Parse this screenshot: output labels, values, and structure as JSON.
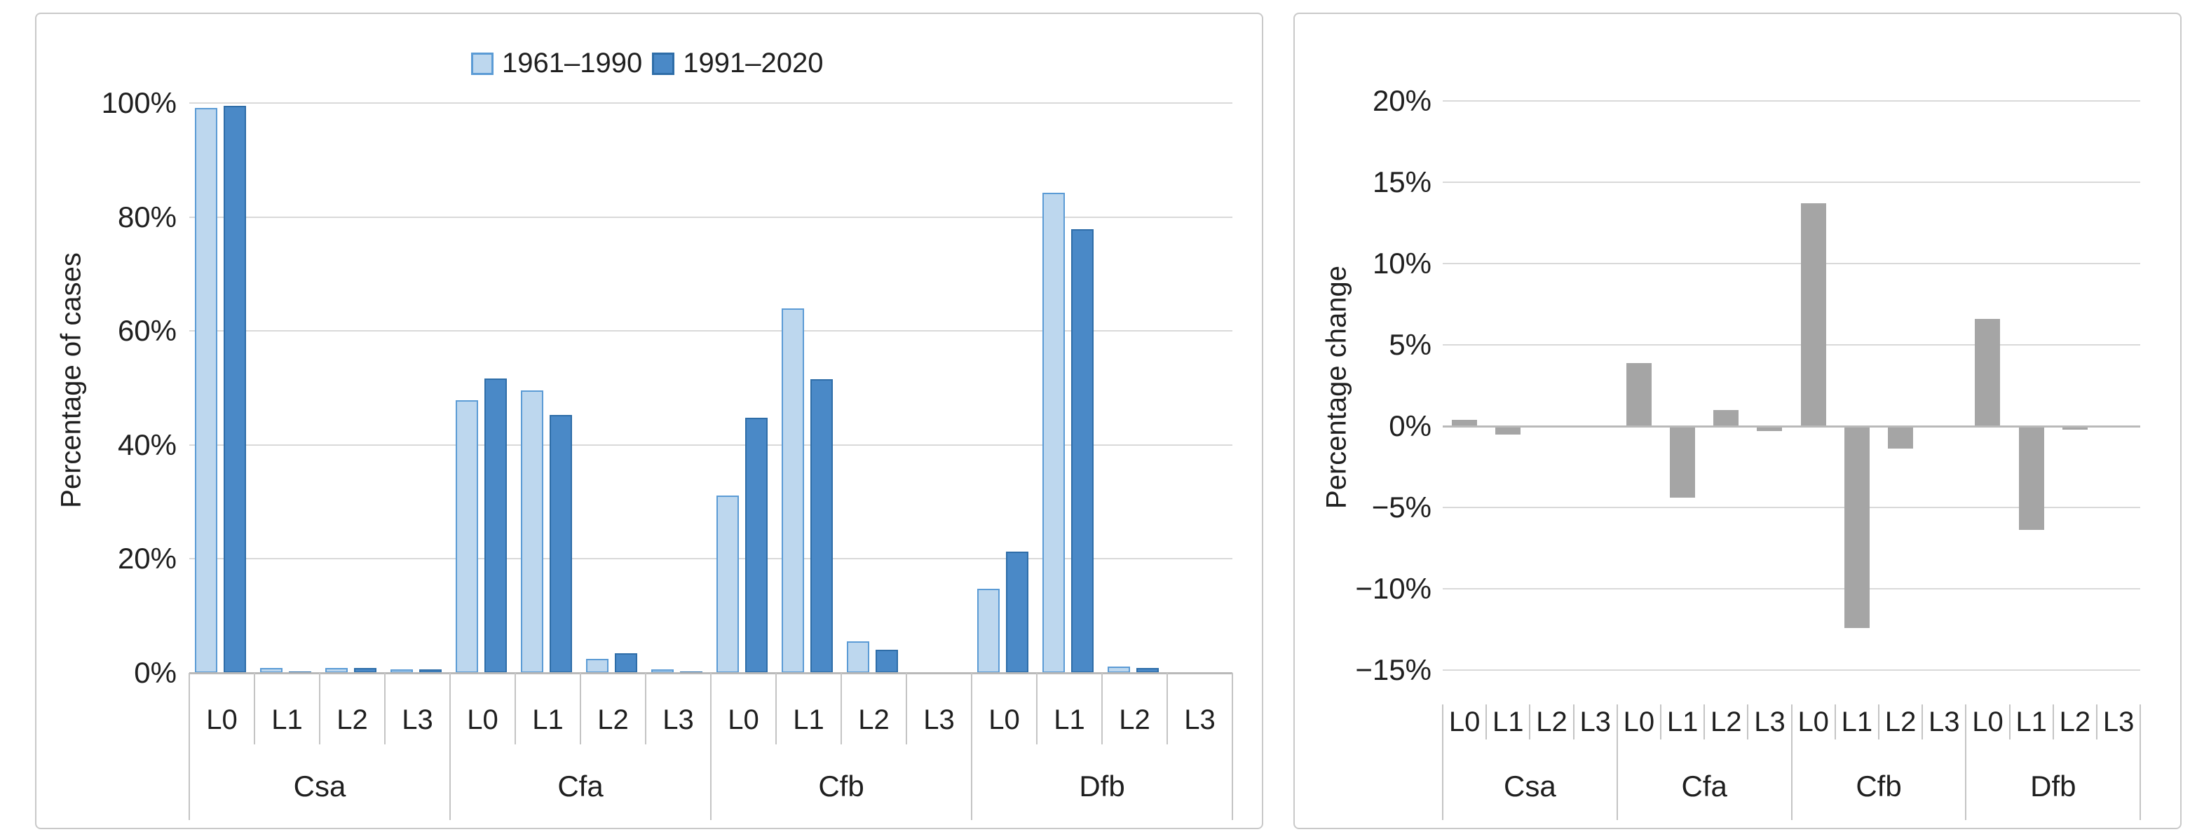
{
  "figure": {
    "description_left": "Grouped bar chart of percentage of cases per lightning category for two climate periods",
    "description_right": "Bar chart of percentage change between the two periods"
  },
  "colors": {
    "series_1961_fill": "#BDD7EE",
    "series_1961_border": "#5B9BD5",
    "series_1991_fill": "#4A89C7",
    "series_1991_border": "#2E6DA8",
    "change_bar_fill": "#A5A5A5",
    "gridline": "#D9D9D9",
    "axis_line": "#B9B9B9",
    "separator": "#C4C4C4",
    "text": "#1F1F1F"
  },
  "chart_data": [
    {
      "type": "bar",
      "title": "",
      "ylabel": "Percentage of cases",
      "xlabel": "",
      "legend_position": "top-center",
      "grid": true,
      "ylim": [
        0,
        100
      ],
      "ytick_labels": [
        "100%",
        "80%",
        "60%",
        "40%",
        "20%",
        "0%"
      ],
      "ytick_values": [
        100,
        80,
        60,
        40,
        20,
        0
      ],
      "groups": [
        "Csa",
        "Cfa",
        "Cfb",
        "Dfb"
      ],
      "subcategories": [
        "L0",
        "L1",
        "L2",
        "L3"
      ],
      "legend": [
        {
          "label": "1961–1990",
          "fill": "#BDD7EE",
          "border": "#5B9BD5"
        },
        {
          "label": "1991–2020",
          "fill": "#4A89C7",
          "border": "#2E6DA8"
        }
      ],
      "series": [
        {
          "name": "1961–1990",
          "values": [
            99.1,
            0.8,
            0.8,
            0.6,
            47.8,
            49.6,
            2.5,
            0.6,
            31.1,
            63.9,
            5.5,
            0.0,
            14.7,
            84.3,
            1.1,
            0.0
          ]
        },
        {
          "name": "1991–2020",
          "values": [
            99.5,
            0.3,
            0.8,
            0.6,
            51.7,
            45.3,
            3.5,
            0.3,
            44.8,
            51.5,
            4.1,
            0.0,
            21.3,
            77.9,
            0.9,
            0.0
          ]
        }
      ]
    },
    {
      "type": "bar",
      "title": "",
      "ylabel": "Percentage change",
      "xlabel": "",
      "grid": true,
      "ylim": [
        -15,
        20
      ],
      "ytick_labels": [
        "20%",
        "15%",
        "10%",
        "5%",
        "0%",
        "−5%",
        "−10%",
        "−15%"
      ],
      "ytick_values": [
        20,
        15,
        10,
        5,
        0,
        -5,
        -10,
        -15
      ],
      "groups": [
        "Csa",
        "Cfa",
        "Cfb",
        "Dfb"
      ],
      "subcategories": [
        "L0",
        "L1",
        "L2",
        "L3"
      ],
      "series": [
        {
          "name": "Percentage change",
          "values": [
            0.4,
            -0.5,
            0.0,
            0.0,
            3.9,
            -4.4,
            1.0,
            -0.3,
            13.7,
            -12.4,
            -1.4,
            0.0,
            6.6,
            -6.4,
            -0.2,
            0.0
          ]
        }
      ]
    }
  ]
}
